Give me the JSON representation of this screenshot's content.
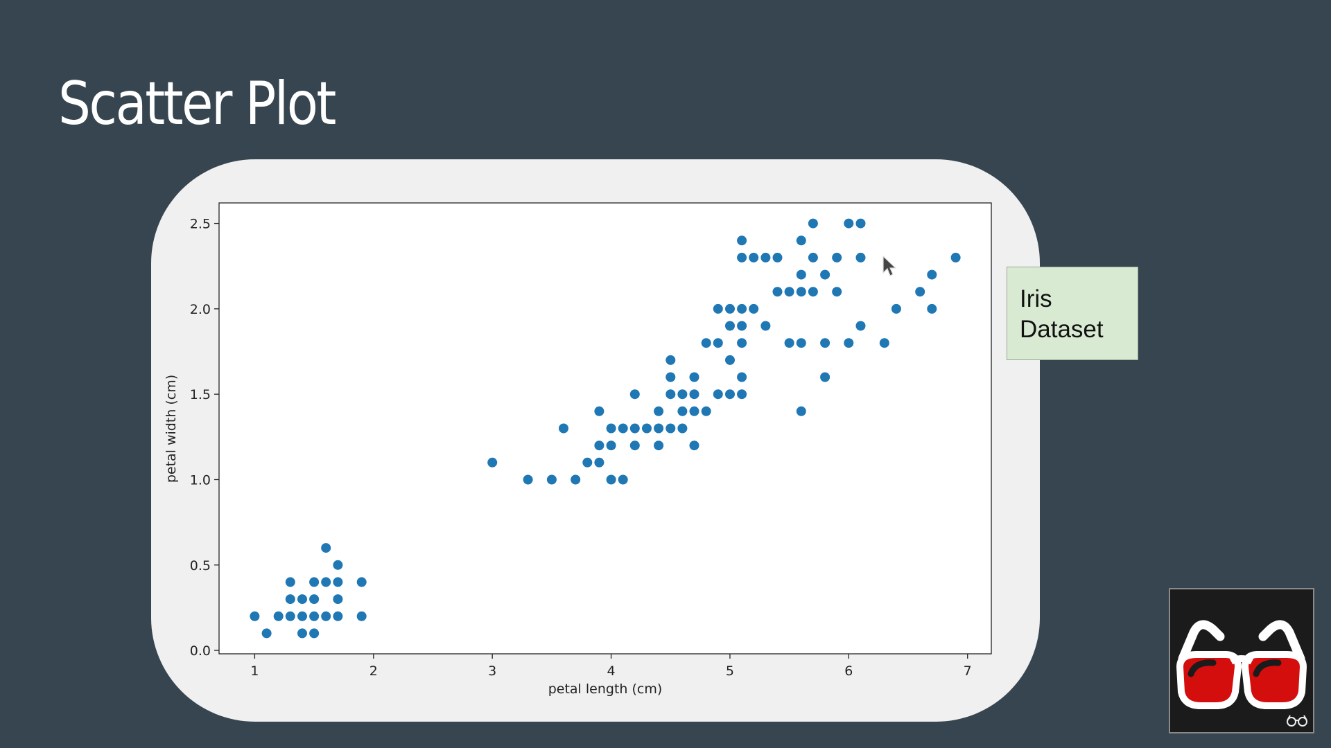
{
  "slide": {
    "title": "Scatter Plot"
  },
  "note": {
    "text": "Iris Dataset",
    "bg_color": "#d9ead3"
  },
  "logo": {
    "icon": "glasses-icon",
    "small_icon": "glasses-icon"
  },
  "chart_data": {
    "type": "scatter",
    "xlabel": "petal length (cm)",
    "ylabel": "petal width (cm)",
    "xlim": [
      0.7,
      7.2
    ],
    "ylim": [
      -0.02,
      2.62
    ],
    "xticks": [
      1,
      2,
      3,
      4,
      5,
      6,
      7
    ],
    "yticks": [
      0.0,
      0.5,
      1.0,
      1.5,
      2.0,
      2.5
    ],
    "ytick_labels": [
      "0.0",
      "0.5",
      "1.0",
      "1.5",
      "2.0",
      "2.5"
    ],
    "grid": false,
    "marker_color": "#1f77b4",
    "points": [
      [
        1.0,
        0.2
      ],
      [
        1.1,
        0.1
      ],
      [
        1.2,
        0.2
      ],
      [
        1.3,
        0.2
      ],
      [
        1.3,
        0.3
      ],
      [
        1.3,
        0.4
      ],
      [
        1.4,
        0.1
      ],
      [
        1.4,
        0.2
      ],
      [
        1.4,
        0.3
      ],
      [
        1.5,
        0.1
      ],
      [
        1.5,
        0.2
      ],
      [
        1.5,
        0.3
      ],
      [
        1.5,
        0.4
      ],
      [
        1.6,
        0.2
      ],
      [
        1.6,
        0.4
      ],
      [
        1.6,
        0.6
      ],
      [
        1.7,
        0.2
      ],
      [
        1.7,
        0.3
      ],
      [
        1.7,
        0.4
      ],
      [
        1.7,
        0.5
      ],
      [
        1.9,
        0.2
      ],
      [
        1.9,
        0.4
      ],
      [
        3.0,
        1.1
      ],
      [
        3.3,
        1.0
      ],
      [
        3.5,
        1.0
      ],
      [
        3.6,
        1.3
      ],
      [
        3.7,
        1.0
      ],
      [
        3.8,
        1.1
      ],
      [
        3.9,
        1.1
      ],
      [
        3.9,
        1.2
      ],
      [
        3.9,
        1.4
      ],
      [
        4.0,
        1.0
      ],
      [
        4.0,
        1.2
      ],
      [
        4.0,
        1.3
      ],
      [
        4.1,
        1.0
      ],
      [
        4.1,
        1.3
      ],
      [
        4.2,
        1.2
      ],
      [
        4.2,
        1.3
      ],
      [
        4.2,
        1.5
      ],
      [
        4.3,
        1.3
      ],
      [
        4.4,
        1.2
      ],
      [
        4.4,
        1.3
      ],
      [
        4.4,
        1.4
      ],
      [
        4.5,
        1.3
      ],
      [
        4.5,
        1.5
      ],
      [
        4.5,
        1.6
      ],
      [
        4.5,
        1.7
      ],
      [
        4.6,
        1.3
      ],
      [
        4.6,
        1.4
      ],
      [
        4.6,
        1.5
      ],
      [
        4.7,
        1.2
      ],
      [
        4.7,
        1.4
      ],
      [
        4.7,
        1.5
      ],
      [
        4.7,
        1.6
      ],
      [
        4.8,
        1.4
      ],
      [
        4.8,
        1.8
      ],
      [
        4.9,
        1.5
      ],
      [
        4.9,
        1.8
      ],
      [
        4.9,
        2.0
      ],
      [
        5.0,
        1.5
      ],
      [
        5.0,
        1.7
      ],
      [
        5.0,
        1.9
      ],
      [
        5.0,
        2.0
      ],
      [
        5.1,
        1.5
      ],
      [
        5.1,
        1.6
      ],
      [
        5.1,
        1.8
      ],
      [
        5.1,
        1.9
      ],
      [
        5.1,
        2.0
      ],
      [
        5.1,
        2.3
      ],
      [
        5.1,
        2.4
      ],
      [
        5.2,
        2.0
      ],
      [
        5.2,
        2.3
      ],
      [
        5.3,
        1.9
      ],
      [
        5.3,
        2.3
      ],
      [
        5.4,
        2.1
      ],
      [
        5.4,
        2.3
      ],
      [
        5.5,
        1.8
      ],
      [
        5.5,
        2.1
      ],
      [
        5.6,
        1.4
      ],
      [
        5.6,
        1.8
      ],
      [
        5.6,
        2.1
      ],
      [
        5.6,
        2.2
      ],
      [
        5.6,
        2.4
      ],
      [
        5.7,
        2.1
      ],
      [
        5.7,
        2.3
      ],
      [
        5.7,
        2.5
      ],
      [
        5.8,
        1.6
      ],
      [
        5.8,
        1.8
      ],
      [
        5.8,
        2.2
      ],
      [
        5.9,
        2.1
      ],
      [
        5.9,
        2.3
      ],
      [
        6.0,
        1.8
      ],
      [
        6.0,
        2.5
      ],
      [
        6.1,
        1.9
      ],
      [
        6.1,
        2.3
      ],
      [
        6.1,
        2.5
      ],
      [
        6.3,
        1.8
      ],
      [
        6.4,
        2.0
      ],
      [
        6.6,
        2.1
      ],
      [
        6.7,
        2.0
      ],
      [
        6.7,
        2.2
      ],
      [
        6.9,
        2.3
      ]
    ]
  }
}
